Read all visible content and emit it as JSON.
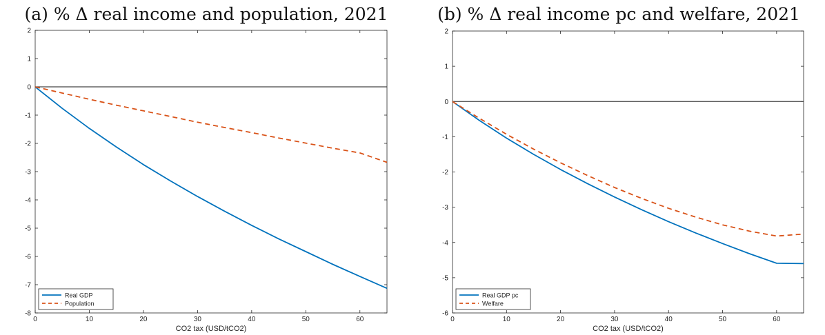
{
  "chart_data": [
    {
      "type": "line",
      "title": "(a) % Δ real income and population, 2021",
      "xlabel": "CO2 tax (USD/tCO2)",
      "ylabel": "",
      "xlim": [
        0,
        65
      ],
      "ylim": [
        -8,
        2
      ],
      "xticks": [
        0,
        10,
        20,
        30,
        40,
        50,
        60
      ],
      "yticks": [
        -8,
        -7,
        -6,
        -5,
        -4,
        -3,
        -2,
        -1,
        0,
        1,
        2
      ],
      "grid": false,
      "legend_position": "bottom-left",
      "reference_line": {
        "y": 0,
        "color": "#444444"
      },
      "series": [
        {
          "name": "Real GDP",
          "color": "#0072BD",
          "style": "solid",
          "x": [
            0,
            5,
            10,
            15,
            20,
            25,
            30,
            35,
            40,
            45,
            50,
            55,
            60,
            65
          ],
          "y": [
            0,
            -0.76,
            -1.47,
            -2.13,
            -2.75,
            -3.33,
            -3.88,
            -4.4,
            -4.9,
            -5.38,
            -5.83,
            -6.28,
            -6.71,
            -7.13
          ]
        },
        {
          "name": "Population",
          "color": "#D95319",
          "style": "dashed",
          "x": [
            0,
            5,
            10,
            15,
            20,
            25,
            30,
            35,
            40,
            45,
            50,
            55,
            60,
            65
          ],
          "y": [
            0,
            -0.22,
            -0.44,
            -0.65,
            -0.85,
            -1.05,
            -1.25,
            -1.44,
            -1.62,
            -1.81,
            -1.99,
            -2.17,
            -2.34,
            -2.67
          ]
        }
      ]
    },
    {
      "type": "line",
      "title": "(b) % Δ real income pc and welfare, 2021",
      "xlabel": "CO2 tax (USD/tCO2)",
      "ylabel": "",
      "xlim": [
        0,
        65
      ],
      "ylim": [
        -6,
        2
      ],
      "xticks": [
        0,
        10,
        20,
        30,
        40,
        50,
        60
      ],
      "yticks": [
        -6,
        -5,
        -4,
        -3,
        -2,
        -1,
        0,
        1,
        2
      ],
      "grid": false,
      "legend_position": "bottom-left",
      "reference_line": {
        "y": 0,
        "color": "#444444"
      },
      "series": [
        {
          "name": "Real GDP pc",
          "color": "#0072BD",
          "style": "solid",
          "x": [
            0,
            5,
            10,
            15,
            20,
            25,
            30,
            35,
            40,
            45,
            50,
            55,
            60,
            65
          ],
          "y": [
            0,
            -0.54,
            -1.04,
            -1.5,
            -1.93,
            -2.33,
            -2.71,
            -3.07,
            -3.41,
            -3.73,
            -4.03,
            -4.32,
            -4.59,
            -4.6
          ]
        },
        {
          "name": "Welfare",
          "color": "#D95319",
          "style": "dashed",
          "x": [
            0,
            5,
            10,
            15,
            20,
            25,
            30,
            35,
            40,
            45,
            50,
            55,
            60,
            65
          ],
          "y": [
            0,
            -0.48,
            -0.93,
            -1.35,
            -1.74,
            -2.1,
            -2.44,
            -2.75,
            -3.03,
            -3.28,
            -3.5,
            -3.68,
            -3.82,
            -3.76
          ]
        }
      ]
    }
  ]
}
